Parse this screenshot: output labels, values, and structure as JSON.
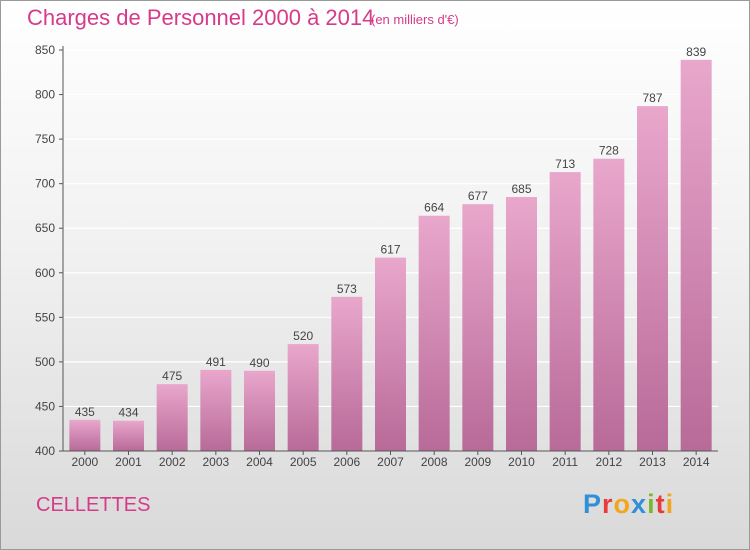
{
  "title": "Charges de Personnel 2000 à 2014",
  "subtitle": "(en milliers d'€)",
  "commune": "CELLETTES",
  "brand": {
    "text": "Proxiti",
    "letters": [
      {
        "char": "P",
        "color": "#2f8fd8"
      },
      {
        "char": "r",
        "color": "#e83b3b"
      },
      {
        "char": "o",
        "color": "#f2a51e"
      },
      {
        "char": "x",
        "color": "#2f8fd8"
      },
      {
        "char": "i",
        "color": "#7cb82f"
      },
      {
        "char": "t",
        "color": "#e83b3b"
      },
      {
        "char": "i",
        "color": "#f2a51e"
      }
    ]
  },
  "colors": {
    "accent": "#d63a8a",
    "bar_top": "#e9a7cc",
    "bar_bottom": "#b86a98",
    "axis": "#555555"
  },
  "chart_data": {
    "type": "bar",
    "title": "Charges de Personnel 2000 à 2014",
    "subtitle": "(en milliers d'€)",
    "categories": [
      "2000",
      "2001",
      "2002",
      "2003",
      "2004",
      "2005",
      "2006",
      "2007",
      "2008",
      "2009",
      "2010",
      "2011",
      "2012",
      "2013",
      "2014"
    ],
    "values": [
      435,
      434,
      475,
      491,
      490,
      520,
      573,
      617,
      664,
      677,
      685,
      713,
      728,
      787,
      839
    ],
    "ylim": [
      400,
      850
    ],
    "yticks": [
      400,
      450,
      500,
      550,
      600,
      650,
      700,
      750,
      800,
      850
    ],
    "grid": true,
    "data_labels": true,
    "legend": "none"
  }
}
